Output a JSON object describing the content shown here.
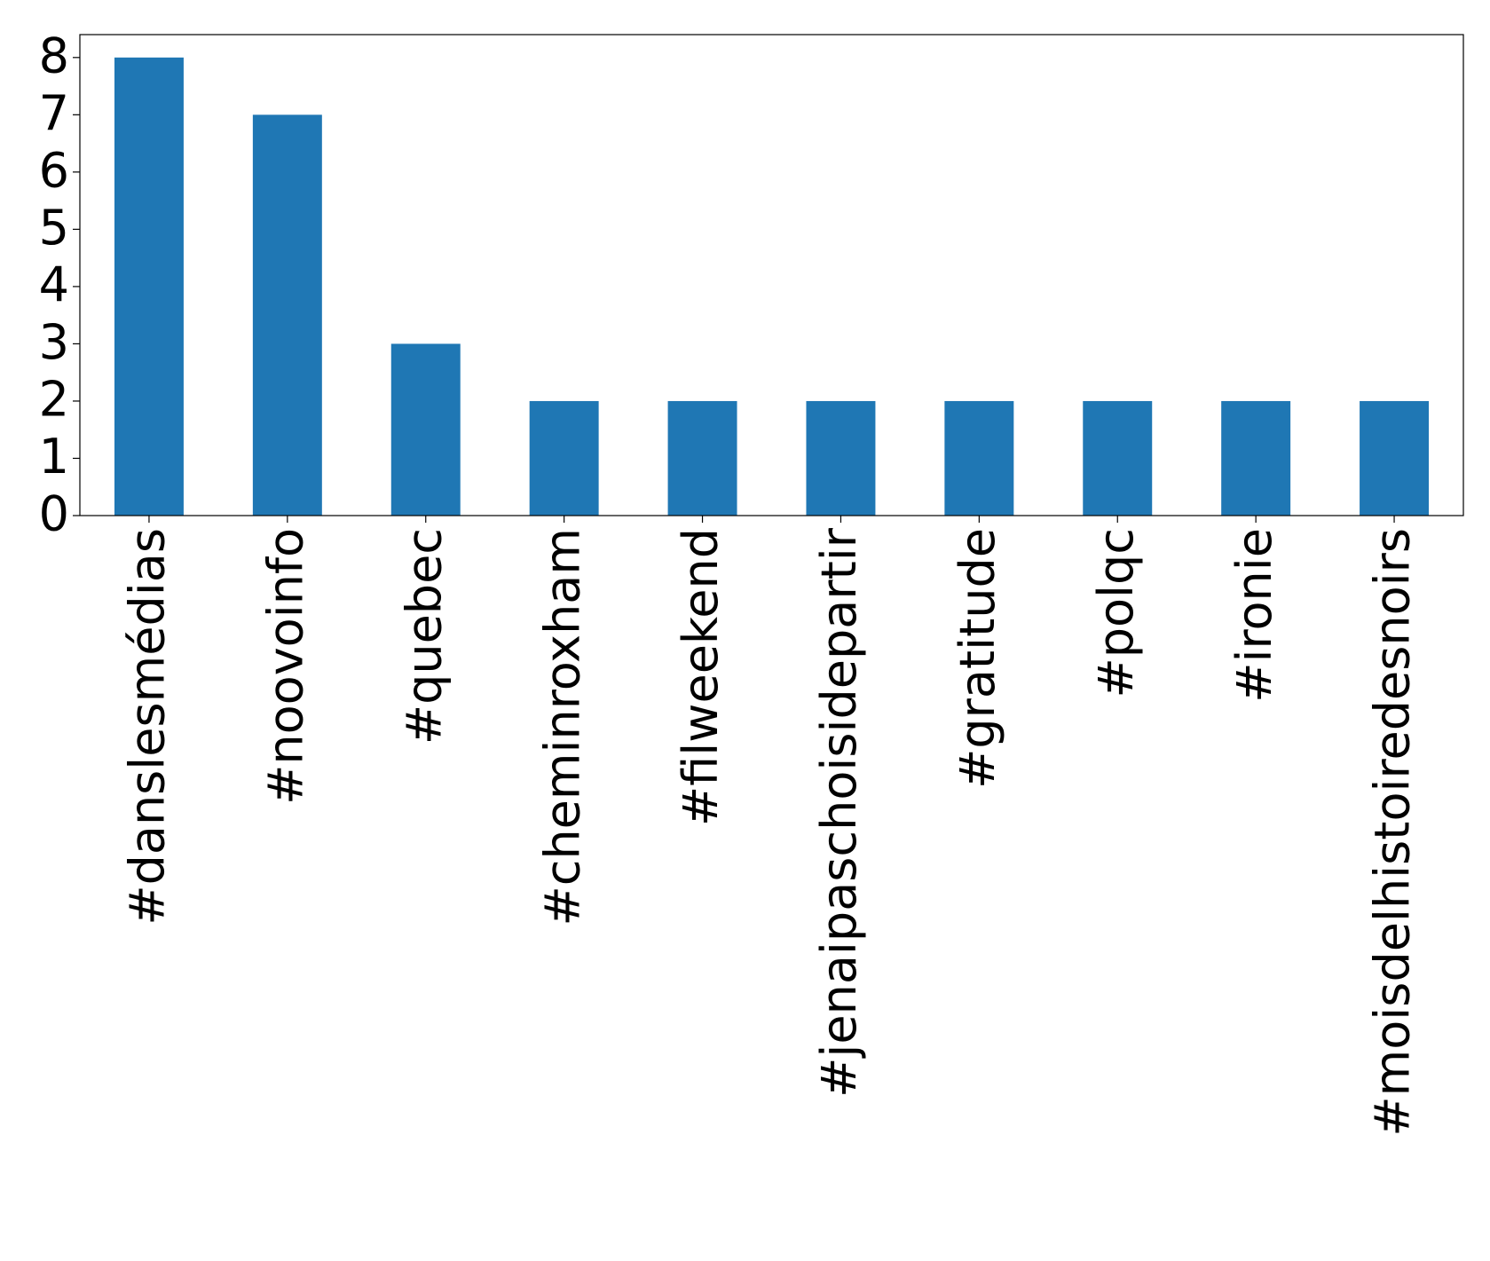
{
  "chart_data": {
    "type": "bar",
    "categories": [
      "#danslesmédias",
      "#noovoinfo",
      "#quebec",
      "#cheminroxham",
      "#filweekend",
      "#jenaipaschoisidepartir",
      "#gratitude",
      "#polqc",
      "#ironie",
      "#moisdelhistoiredesnoirs"
    ],
    "values": [
      8,
      7,
      3,
      2,
      2,
      2,
      2,
      2,
      2,
      2
    ],
    "color": "#1f77b4",
    "ylim": [
      0,
      8.4
    ],
    "yticks": [
      0,
      1,
      2,
      3,
      4,
      5,
      6,
      7,
      8
    ],
    "grid": false
  }
}
